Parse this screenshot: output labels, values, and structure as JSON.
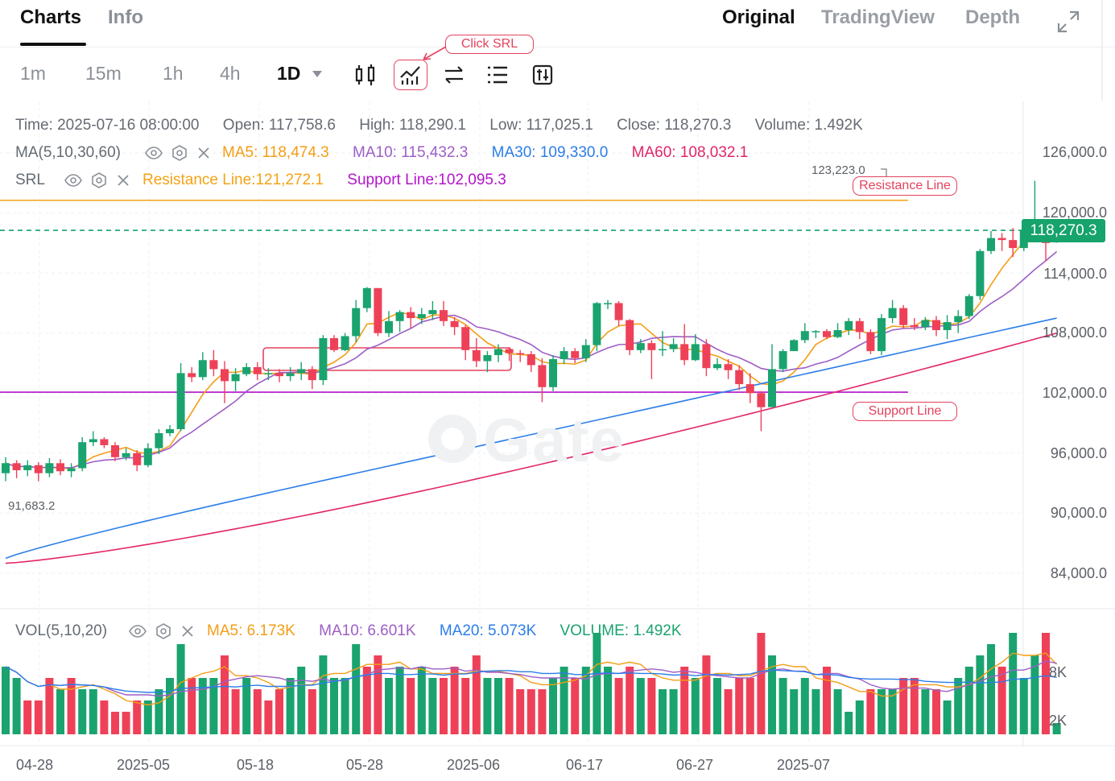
{
  "header": {
    "tabs": [
      "Charts",
      "Info"
    ],
    "views": [
      "Original",
      "TradingView",
      "Depth"
    ]
  },
  "toolbar": {
    "intervals": [
      "1m",
      "15m",
      "1h",
      "4h",
      "1D"
    ],
    "active_interval": "1D",
    "click_srl_annotation": "Click SRL"
  },
  "ohlc": {
    "time": "Time: 2025-07-16 08:00:00",
    "open": "Open: 117,758.6",
    "high": "High: 118,290.1",
    "low": "Low: 117,025.1",
    "close": "Close: 118,270.3",
    "volume": "Volume: 1.492K"
  },
  "ma": {
    "label": "MA(5,10,30,60)",
    "ma5": "MA5: 118,474.3",
    "ma10": "MA10: 115,432.3",
    "ma30": "MA30: 109,330.0",
    "ma60": "MA60: 108,032.1"
  },
  "srl": {
    "label": "SRL",
    "resistance": "Resistance Line:121,272.1",
    "support": "Support Line:102,095.3"
  },
  "vol": {
    "label": "VOL(5,10,20)",
    "ma5": "MA5: 6.173K",
    "ma10": "MA10: 6.601K",
    "ma20": "MA20: 5.073K",
    "volume": "VOLUME: 1.492K"
  },
  "annotations": {
    "resistance_line": "Resistance Line",
    "support_line": "Support Line"
  },
  "colors": {
    "up": "#1aa36f",
    "down": "#ee4158",
    "ma5": "#f49d15",
    "ma10": "#9d5fc6",
    "ma30": "#2b7de9",
    "ma60": "#e2256a",
    "resistance": "#f3a315",
    "support": "#b215c9",
    "price_tag": "#16a36c",
    "annotation": "#e3425e"
  },
  "chart_data": {
    "type": "candlestick",
    "price_axis_ticks": [
      "126,000.0",
      "120,000.0",
      "114,000.0",
      "108,000.0",
      "102,000.0",
      "96,000.0",
      "90,000.0",
      "84,000.0"
    ],
    "volume_axis_ticks": [
      "8K",
      "2K"
    ],
    "x_tick_labels": [
      "04-28",
      "2025-05",
      "05-18",
      "05-28",
      "2025-06",
      "06-17",
      "06-27",
      "2025-07"
    ],
    "current_price": "118,270.3",
    "max_marker": "123,223.0",
    "min_marker": "91,683.2",
    "resistance": 121272.1,
    "support": 102095.3,
    "ylim": [
      80000,
      130000
    ],
    "candles": [
      [
        94000,
        95000,
        93200,
        95600,
        1
      ],
      [
        95000,
        94300,
        93500,
        95300,
        2
      ],
      [
        94300,
        94800,
        93700,
        95300,
        3
      ],
      [
        94800,
        94000,
        93200,
        95100,
        4
      ],
      [
        94000,
        95000,
        93600,
        95500,
        5
      ],
      [
        95000,
        94200,
        93800,
        95400,
        6
      ],
      [
        94200,
        94500,
        93600,
        95000,
        7
      ],
      [
        94500,
        97100,
        94200,
        97600,
        8
      ],
      [
        97100,
        97400,
        96700,
        98200,
        9
      ],
      [
        97400,
        96800,
        96500,
        97600,
        10
      ],
      [
        96800,
        95600,
        95200,
        97100,
        11
      ],
      [
        95600,
        96000,
        95300,
        96500,
        12
      ],
      [
        96000,
        94800,
        94200,
        96300,
        13
      ],
      [
        94800,
        96500,
        94600,
        97000,
        14
      ],
      [
        96500,
        98000,
        95900,
        98400,
        15
      ],
      [
        98000,
        98400,
        97700,
        98800,
        16
      ],
      [
        98400,
        104000,
        98200,
        105000,
        17
      ],
      [
        104000,
        103600,
        103100,
        104600,
        18
      ],
      [
        103600,
        105300,
        103300,
        106100,
        19
      ],
      [
        105300,
        104400,
        103700,
        106300,
        20
      ],
      [
        104400,
        103200,
        101000,
        105200,
        21
      ],
      [
        103200,
        103900,
        102200,
        104500,
        22
      ],
      [
        103900,
        104600,
        103700,
        105000,
        23
      ],
      [
        104600,
        103900,
        103300,
        105100,
        24
      ],
      [
        103900,
        104000,
        103300,
        104500,
        25
      ],
      [
        104000,
        103700,
        103100,
        104400,
        26
      ],
      [
        103700,
        104000,
        103200,
        104600,
        27
      ],
      [
        104000,
        104400,
        103300,
        105100,
        28
      ],
      [
        104400,
        103300,
        102400,
        104700,
        29
      ],
      [
        103300,
        107500,
        102800,
        107800,
        30
      ],
      [
        107500,
        106300,
        106100,
        107800,
        31
      ],
      [
        106300,
        107700,
        106200,
        108000,
        32
      ],
      [
        107700,
        110500,
        107100,
        111300,
        33
      ],
      [
        110500,
        112500,
        110100,
        112600,
        34
      ],
      [
        112500,
        108000,
        107700,
        112500,
        35
      ],
      [
        108000,
        109200,
        107600,
        110200,
        36
      ],
      [
        109200,
        110100,
        108100,
        110300,
        37
      ],
      [
        110100,
        109500,
        108500,
        110600,
        38
      ],
      [
        109500,
        109900,
        108900,
        110500,
        39
      ],
      [
        109900,
        110300,
        109300,
        111200,
        40
      ],
      [
        110300,
        109200,
        108700,
        111200,
        41
      ],
      [
        109200,
        108600,
        107800,
        109600,
        42
      ],
      [
        108600,
        106300,
        105300,
        108800,
        43
      ],
      [
        106300,
        105200,
        104600,
        107500,
        44
      ],
      [
        105200,
        105800,
        104100,
        106200,
        45
      ],
      [
        105800,
        106400,
        105100,
        106900,
        46
      ],
      [
        106400,
        106000,
        105200,
        106600,
        47
      ],
      [
        106000,
        105900,
        105100,
        106300,
        48
      ],
      [
        105900,
        104800,
        104100,
        106200,
        49
      ],
      [
        104800,
        102600,
        101100,
        105500,
        50
      ],
      [
        102600,
        105400,
        102200,
        105800,
        51
      ],
      [
        105400,
        106200,
        104900,
        106600,
        52
      ],
      [
        106200,
        105500,
        105000,
        106500,
        53
      ],
      [
        105500,
        106800,
        105100,
        107400,
        54
      ],
      [
        106800,
        111000,
        106200,
        111100,
        55
      ],
      [
        111000,
        111000,
        110400,
        111300,
        56
      ],
      [
        111000,
        109300,
        108700,
        111200,
        57
      ],
      [
        109300,
        106300,
        105800,
        109400,
        58
      ],
      [
        106300,
        107000,
        106000,
        107400,
        59
      ],
      [
        107000,
        106300,
        103400,
        107300,
        60
      ],
      [
        106300,
        106400,
        105700,
        108200,
        61
      ],
      [
        106400,
        106900,
        106100,
        107500,
        62
      ],
      [
        106900,
        105300,
        104800,
        108900,
        63
      ],
      [
        105300,
        106900,
        105200,
        107900,
        64
      ],
      [
        106900,
        104500,
        103700,
        107400,
        65
      ],
      [
        104500,
        104900,
        104300,
        105500,
        66
      ],
      [
        104900,
        104300,
        103400,
        105400,
        67
      ],
      [
        104300,
        102900,
        102300,
        104800,
        68
      ],
      [
        102900,
        102000,
        101000,
        104000,
        69
      ],
      [
        102000,
        100600,
        98200,
        102200,
        70
      ],
      [
        100600,
        104400,
        100600,
        106900,
        71
      ],
      [
        104400,
        106200,
        104100,
        106400,
        72
      ],
      [
        106200,
        107300,
        106200,
        107400,
        73
      ],
      [
        107300,
        108200,
        107000,
        109000,
        74
      ],
      [
        108200,
        108200,
        107500,
        108300,
        75
      ],
      [
        108200,
        107600,
        107400,
        108400,
        76
      ],
      [
        107600,
        108300,
        107500,
        109000,
        77
      ],
      [
        108300,
        109200,
        107800,
        109500,
        78
      ],
      [
        109200,
        108100,
        107400,
        109500,
        79
      ],
      [
        108100,
        106200,
        105900,
        108400,
        80
      ],
      [
        106200,
        109500,
        105800,
        109900,
        81
      ],
      [
        109500,
        110500,
        109000,
        111300,
        82
      ],
      [
        110500,
        108800,
        108500,
        110800,
        83
      ],
      [
        108800,
        108600,
        108300,
        109500,
        84
      ],
      [
        108600,
        109300,
        108300,
        109600,
        85
      ],
      [
        109300,
        108300,
        107700,
        109700,
        86
      ],
      [
        108300,
        109100,
        107400,
        109800,
        87
      ],
      [
        109100,
        109700,
        108000,
        110300,
        88
      ],
      [
        109700,
        111700,
        109400,
        111900,
        89
      ],
      [
        111700,
        116200,
        111300,
        116400,
        90
      ],
      [
        116200,
        117500,
        115900,
        118200,
        91
      ],
      [
        117500,
        117300,
        116200,
        118000,
        92
      ],
      [
        117300,
        116500,
        115600,
        118500,
        93
      ],
      [
        116500,
        118300,
        116200,
        119000,
        94
      ],
      [
        118300,
        119000,
        117400,
        123223,
        95
      ],
      [
        119000,
        117000,
        115200,
        119100,
        96
      ],
      [
        117758.6,
        118270.3,
        117025.1,
        118290.1,
        97
      ]
    ],
    "volumes": [
      6,
      5,
      3,
      3,
      5,
      4,
      5,
      4,
      4,
      3,
      2,
      2,
      3,
      3,
      4,
      5,
      8,
      5,
      5,
      5,
      7,
      4,
      5,
      4,
      3,
      4,
      5,
      6,
      4,
      7,
      5,
      5,
      8,
      6,
      7,
      5,
      6,
      5,
      6,
      5,
      5,
      6,
      5,
      7,
      5,
      5,
      5,
      4,
      4,
      4,
      5,
      6,
      5,
      6,
      9,
      6,
      5,
      6,
      5,
      5,
      4,
      4,
      6,
      5,
      7,
      5,
      4,
      5,
      5,
      9,
      7,
      5,
      4,
      5,
      4,
      6,
      4,
      2,
      3,
      4,
      4,
      4,
      5,
      5,
      4,
      4,
      3,
      5,
      6,
      7,
      8,
      6,
      9,
      5,
      7,
      9,
      1
    ],
    "vol_up": [
      1,
      1,
      0,
      0,
      0,
      1,
      0,
      1,
      1,
      0,
      0,
      0,
      0,
      1,
      1,
      1,
      1,
      0,
      1,
      1,
      0,
      0,
      1,
      0,
      0,
      0,
      1,
      1,
      0,
      1,
      1,
      1,
      1,
      0,
      0,
      1,
      1,
      0,
      1,
      1,
      0,
      0,
      0,
      0,
      1,
      1,
      0,
      0,
      0,
      0,
      1,
      1,
      0,
      1,
      1,
      1,
      0,
      0,
      1,
      0,
      1,
      1,
      0,
      1,
      0,
      1,
      0,
      0,
      0,
      0,
      1,
      1,
      1,
      1,
      1,
      0,
      1,
      1,
      1,
      0,
      1,
      1,
      0,
      0,
      1,
      0,
      1,
      1,
      1,
      1,
      1,
      0,
      1,
      1,
      1,
      0,
      1
    ]
  }
}
